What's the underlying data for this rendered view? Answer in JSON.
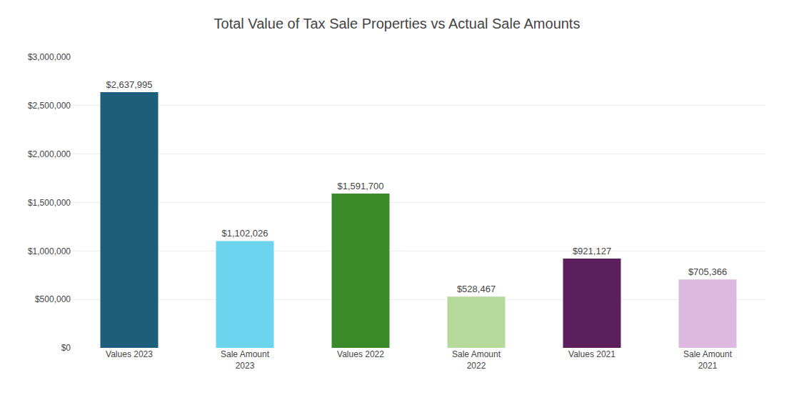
{
  "chart_data": {
    "type": "bar",
    "title": "Total Value of Tax Sale Properties vs Actual Sale Amounts",
    "categories": [
      "Values 2023",
      "Sale Amount\n2023",
      "Values 2022",
      "Sale Amount\n2022",
      "Values 2021",
      "Sale Amount\n2021"
    ],
    "values": [
      2637995,
      1102026,
      1591700,
      528467,
      921127,
      705366
    ],
    "value_labels": [
      "$2,637,995",
      "$1,102,026",
      "$1,591,700",
      "$528,467",
      "$921,127",
      "$705,366"
    ],
    "data_labels": true,
    "colors": [
      "#1f5e7a",
      "#6dd4f0",
      "#3a8a2a",
      "#b5d99b",
      "#5b1f5e",
      "#ddb8e0"
    ],
    "ylim": [
      0,
      3000000
    ],
    "yticks": [
      {
        "value": 0,
        "label": "$0"
      },
      {
        "value": 500000,
        "label": "$500,000"
      },
      {
        "value": 1000000,
        "label": "$1,000,000"
      },
      {
        "value": 1500000,
        "label": "$1,500,000"
      },
      {
        "value": 2000000,
        "label": "$2,000,000"
      },
      {
        "value": 2500000,
        "label": "$2,500,000"
      },
      {
        "value": 3000000,
        "label": "$3,000,000"
      }
    ],
    "grid": true
  }
}
